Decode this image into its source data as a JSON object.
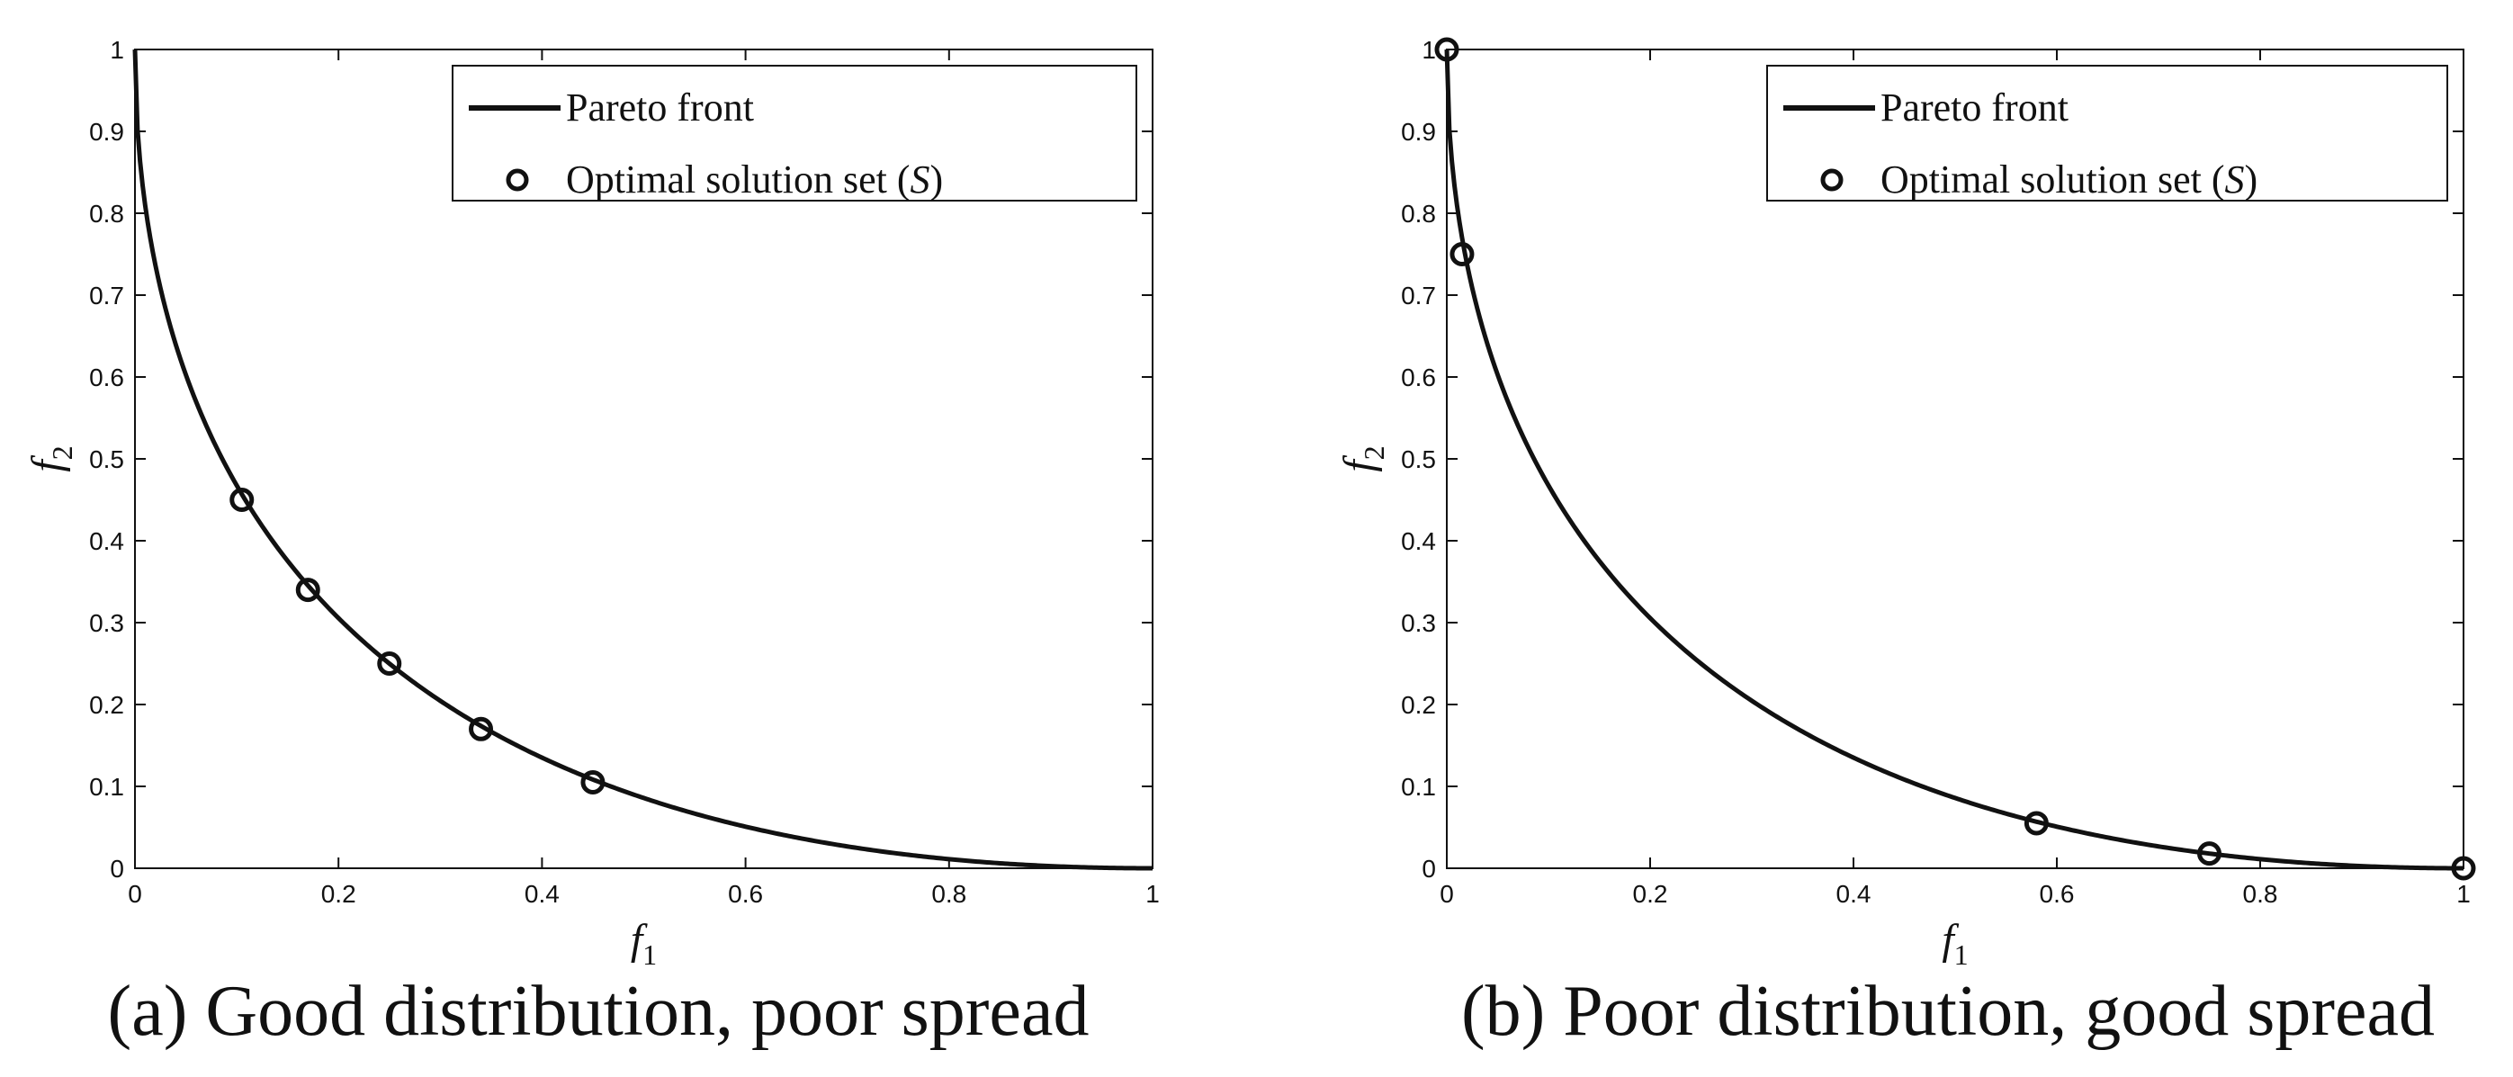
{
  "chart_data": [
    {
      "type": "line",
      "id": "a",
      "caption": "(a) Good distribution, poor spread",
      "xlabel": "f",
      "xlabel_sub": "1",
      "ylabel": "f",
      "ylabel_sub": "2",
      "xlim": [
        0,
        1
      ],
      "ylim": [
        0,
        1
      ],
      "xticks": [
        "0",
        "0.2",
        "0.4",
        "0.6",
        "0.8",
        "1"
      ],
      "yticks": [
        "0",
        "0.1",
        "0.2",
        "0.3",
        "0.4",
        "0.5",
        "0.6",
        "0.7",
        "0.8",
        "0.9",
        "1"
      ],
      "legend_position": "top-right",
      "series": [
        {
          "name": "Pareto front",
          "kind": "line",
          "function": "(1 - sqrt(x))^2"
        },
        {
          "name": "Optimal solution set (S)",
          "kind": "scatter",
          "points": [
            [
              0.105,
              0.45
            ],
            [
              0.17,
              0.34
            ],
            [
              0.25,
              0.25
            ],
            [
              0.34,
              0.17
            ],
            [
              0.45,
              0.105
            ]
          ]
        }
      ]
    },
    {
      "type": "line",
      "id": "b",
      "caption": "(b) Poor distribution, good spread",
      "xlabel": "f",
      "xlabel_sub": "1",
      "ylabel": "f",
      "ylabel_sub": "2",
      "xlim": [
        0,
        1
      ],
      "ylim": [
        0,
        1
      ],
      "xticks": [
        "0",
        "0.2",
        "0.4",
        "0.6",
        "0.8",
        "1"
      ],
      "yticks": [
        "0",
        "0.1",
        "0.2",
        "0.3",
        "0.4",
        "0.5",
        "0.6",
        "0.7",
        "0.8",
        "0.9",
        "1"
      ],
      "legend_position": "top-right",
      "series": [
        {
          "name": "Pareto front",
          "kind": "line",
          "function": "(1 - sqrt(x))^2"
        },
        {
          "name": "Optimal solution set (S)",
          "kind": "scatter",
          "points": [
            [
              0,
              1.0
            ],
            [
              0.015,
              0.75
            ],
            [
              0.58,
              0.055
            ],
            [
              0.75,
              0.018
            ],
            [
              1.0,
              0.0
            ]
          ]
        }
      ]
    }
  ]
}
